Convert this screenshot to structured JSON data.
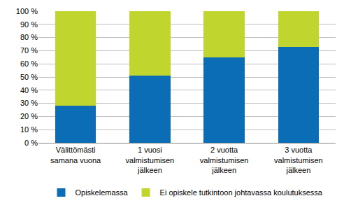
{
  "chart_data": {
    "type": "bar",
    "stacked": true,
    "categories": [
      "Välittömästi\nsamana vuona",
      "1 vuosi\nvalmistumisen\njälkeen",
      "2 vuotta\nvalmistumisen\njälkeen",
      "3 vuotta\nvalmistumisen\njälkeen"
    ],
    "series": [
      {
        "name": "Opiskelemassa",
        "color": "#0a6db5",
        "values": [
          28,
          51,
          65,
          73
        ]
      },
      {
        "name": "Ei opiskele tutkintoon johtavassa koulutuksessa",
        "color": "#c0d52e",
        "values": [
          72,
          49,
          35,
          27
        ]
      }
    ],
    "ylim": [
      0,
      100
    ],
    "yticks": [
      {
        "value": 0,
        "label": "0 %"
      },
      {
        "value": 10,
        "label": "10 %"
      },
      {
        "value": 20,
        "label": "20 %"
      },
      {
        "value": 30,
        "label": "30 %"
      },
      {
        "value": 40,
        "label": "40 %"
      },
      {
        "value": 50,
        "label": "50 %"
      },
      {
        "value": 60,
        "label": "60 %"
      },
      {
        "value": 70,
        "label": "70 %"
      },
      {
        "value": 80,
        "label": "80 %"
      },
      {
        "value": 90,
        "label": "90 %"
      },
      {
        "value": 100,
        "label": "100 %"
      }
    ],
    "grid": true,
    "legend": "bottom"
  }
}
